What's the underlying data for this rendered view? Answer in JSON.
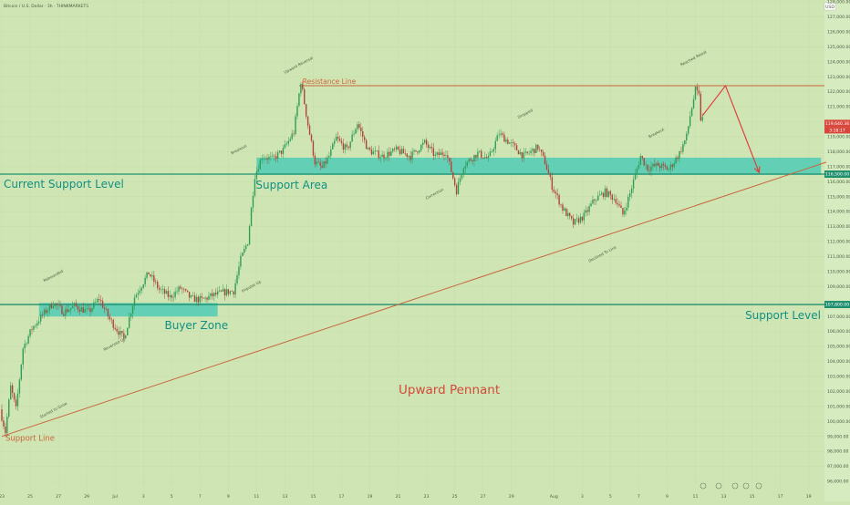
{
  "chart_data": {
    "type": "candlestick",
    "header": "Bitcoin / U.S. Dollar · 3h · THINKMARKETS",
    "currency": "USD",
    "price_axis": {
      "min": 96000,
      "max": 128000,
      "ticks": [
        96000,
        97000,
        98000,
        99000,
        100000,
        101000,
        102000,
        103000,
        104000,
        105000,
        106000,
        107000,
        108000,
        109000,
        110000,
        111000,
        112000,
        113000,
        114000,
        115000,
        116000,
        117000,
        118000,
        119000,
        120000,
        121000,
        122000,
        123000,
        124000,
        125000,
        126000,
        127000,
        128000
      ],
      "tick_labels": [
        "96,000.00",
        "97,000.00",
        "98,000.00",
        "99,000.00",
        "100,000.00",
        "101,000.00",
        "102,000.00",
        "103,000.00",
        "104,000.00",
        "105,000.00",
        "106,000.00",
        "107,000.00",
        "108,000.00",
        "109,000.00",
        "110,000.00",
        "111,000.00",
        "112,000.00",
        "113,000.00",
        "114,000.00",
        "115,000.00",
        "116,000.00",
        "117,000.00",
        "118,000.00",
        "119,000.00",
        "120,000.00",
        "121,000.00",
        "122,000.00",
        "123,000.00",
        "124,000.00",
        "125,000.00",
        "126,000.00",
        "127,000.00",
        "128,000.00"
      ]
    },
    "time_axis": {
      "ticks": [
        {
          "i": 0,
          "label": "23"
        },
        {
          "i": 16,
          "label": "25"
        },
        {
          "i": 32,
          "label": "27"
        },
        {
          "i": 48,
          "label": "29"
        },
        {
          "i": 64,
          "label": "Jul"
        },
        {
          "i": 80,
          "label": "3"
        },
        {
          "i": 96,
          "label": "5"
        },
        {
          "i": 112,
          "label": "7"
        },
        {
          "i": 128,
          "label": "9"
        },
        {
          "i": 144,
          "label": "11"
        },
        {
          "i": 160,
          "label": "13"
        },
        {
          "i": 176,
          "label": "15"
        },
        {
          "i": 192,
          "label": "17"
        },
        {
          "i": 208,
          "label": "19"
        },
        {
          "i": 224,
          "label": "21"
        },
        {
          "i": 240,
          "label": "23"
        },
        {
          "i": 256,
          "label": "25"
        },
        {
          "i": 272,
          "label": "27"
        },
        {
          "i": 288,
          "label": "29"
        },
        {
          "i": 312,
          "label": "Aug"
        },
        {
          "i": 328,
          "label": "3"
        },
        {
          "i": 344,
          "label": "5"
        },
        {
          "i": 360,
          "label": "7"
        },
        {
          "i": 376,
          "label": "9"
        },
        {
          "i": 392,
          "label": "11"
        },
        {
          "i": 408,
          "label": "13"
        },
        {
          "i": 424,
          "label": "15"
        },
        {
          "i": 440,
          "label": "17"
        },
        {
          "i": 456,
          "label": "19"
        }
      ]
    },
    "price_path": [
      [
        0,
        100800
      ],
      [
        3,
        99300
      ],
      [
        6,
        102300
      ],
      [
        9,
        100800
      ],
      [
        13,
        104900
      ],
      [
        18,
        106200
      ],
      [
        24,
        107100
      ],
      [
        30,
        107900
      ],
      [
        36,
        107300
      ],
      [
        42,
        107700
      ],
      [
        50,
        107300
      ],
      [
        56,
        108200
      ],
      [
        62,
        106800
      ],
      [
        70,
        105500
      ],
      [
        76,
        108300
      ],
      [
        84,
        109900
      ],
      [
        90,
        108800
      ],
      [
        96,
        108300
      ],
      [
        102,
        108900
      ],
      [
        108,
        108200
      ],
      [
        114,
        108100
      ],
      [
        120,
        108400
      ],
      [
        126,
        108600
      ],
      [
        132,
        108700
      ],
      [
        136,
        110800
      ],
      [
        140,
        112000
      ],
      [
        144,
        116400
      ],
      [
        148,
        117700
      ],
      [
        154,
        117500
      ],
      [
        160,
        118100
      ],
      [
        166,
        119300
      ],
      [
        170,
        122700
      ],
      [
        174,
        119800
      ],
      [
        178,
        117300
      ],
      [
        182,
        116900
      ],
      [
        186,
        117700
      ],
      [
        190,
        118900
      ],
      [
        196,
        118100
      ],
      [
        202,
        119900
      ],
      [
        208,
        118100
      ],
      [
        216,
        117700
      ],
      [
        224,
        118100
      ],
      [
        232,
        117700
      ],
      [
        240,
        118600
      ],
      [
        246,
        117700
      ],
      [
        252,
        118000
      ],
      [
        258,
        115400
      ],
      [
        262,
        117100
      ],
      [
        270,
        117900
      ],
      [
        276,
        117500
      ],
      [
        282,
        119200
      ],
      [
        288,
        118600
      ],
      [
        296,
        117700
      ],
      [
        304,
        118300
      ],
      [
        308,
        117300
      ],
      [
        312,
        115700
      ],
      [
        318,
        114200
      ],
      [
        324,
        113200
      ],
      [
        330,
        113700
      ],
      [
        336,
        114800
      ],
      [
        342,
        115300
      ],
      [
        348,
        114800
      ],
      [
        352,
        113800
      ],
      [
        356,
        115200
      ],
      [
        362,
        117700
      ],
      [
        366,
        116900
      ],
      [
        372,
        117100
      ],
      [
        378,
        116800
      ],
      [
        384,
        117900
      ],
      [
        388,
        119000
      ],
      [
        390,
        120400
      ],
      [
        393,
        122100
      ],
      [
        395,
        121700
      ],
      [
        396,
        120200
      ]
    ],
    "current_price_labels": [
      "119,640.36",
      "3:18:17"
    ],
    "levels": [
      {
        "name": "Resistance Line",
        "value": 122400
      },
      {
        "name": "Current Support Level",
        "value": 116500,
        "label": "116,500.00"
      },
      {
        "name": "Support Level",
        "value": 107800,
        "label": "107,800.00"
      }
    ],
    "zones": [
      {
        "name": "Support Area",
        "from_i": 144,
        "to_i": 463,
        "low": 116450,
        "high": 117600
      },
      {
        "name": "Buyer Zone",
        "from_i": 21,
        "to_i": 122,
        "low": 107000,
        "high": 107900
      }
    ],
    "support_line": {
      "label": "Support Line",
      "from": [
        0,
        99000
      ],
      "to": [
        466,
        117300
      ]
    },
    "pattern_label": "Upward Pennant",
    "projection": [
      [
        396,
        120400
      ],
      [
        409,
        122400
      ],
      [
        428,
        116600
      ]
    ],
    "annotations": [
      {
        "text": "Rebounded",
        "i": 24,
        "p": 109300
      },
      {
        "text": "Started to Grow",
        "i": 22,
        "p": 100200
      },
      {
        "text": "Reversed Up",
        "i": 58,
        "p": 104700
      },
      {
        "text": "Breakout",
        "i": 130,
        "p": 117800
      },
      {
        "text": "Impulse Up",
        "i": 136,
        "p": 108600
      },
      {
        "text": "Upward Reversal",
        "i": 160,
        "p": 123200
      },
      {
        "text": "Dropped",
        "i": 292,
        "p": 120200
      },
      {
        "text": "Correction",
        "i": 240,
        "p": 114800
      },
      {
        "text": "Breakout",
        "i": 366,
        "p": 118900
      },
      {
        "text": "Reached Resist",
        "i": 384,
        "p": 123700
      },
      {
        "text": "Declined To Line",
        "i": 332,
        "p": 110600
      }
    ],
    "toolbar_icons": [
      "camera-icon",
      "alert-icon",
      "settings-icon",
      "compare-icon",
      "indicators-icon"
    ]
  }
}
